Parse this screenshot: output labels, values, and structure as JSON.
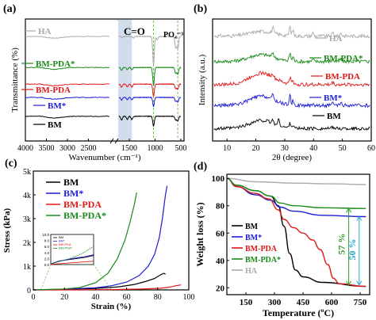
{
  "colors": {
    "HA": "#aaaaaa",
    "BM": "#000000",
    "BM*": "#1c1cd6",
    "BM-PDA": "#e01818",
    "BM-PDA*": "#1a8a1a",
    "annot_green": "#2a9a2a",
    "annot_cyan": "#22a8cc",
    "band": "#c9d6ea",
    "dash": "#6fc24a"
  },
  "chart_data": [
    {
      "panel_label": "(a)",
      "type": "line",
      "xlabel": "Wavenumber (cm⁻¹)",
      "ylabel": "Transmittance (%)",
      "xlim": [
        4000,
        500
      ],
      "axis_break_between": [
        2000,
        1700
      ],
      "x_ticks": [
        "4000",
        "3500",
        "3000",
        "2500",
        "1500",
        "1000",
        "500"
      ],
      "annotations": [
        "C=O",
        "PO₄⁻³"
      ],
      "highlight_band": [
        1750,
        1450
      ],
      "dashed_lines": [
        1030,
        560
      ],
      "legend": [
        "HA",
        "BM-PDA*",
        "BM-PDA",
        "BM*",
        "BM"
      ],
      "series": [
        {
          "name": "HA",
          "offset": 0.9,
          "dips": [
            [
              1640,
              0.02
            ],
            [
              1420,
              0.03
            ],
            [
              1030,
              0.5
            ],
            [
              960,
              0.06
            ],
            [
              600,
              0.2
            ],
            [
              560,
              0.22
            ]
          ]
        },
        {
          "name": "BM-PDA*",
          "offset": 0.62,
          "dips": [
            [
              1650,
              0.05
            ],
            [
              1540,
              0.04
            ],
            [
              1450,
              0.04
            ],
            [
              1030,
              0.32
            ],
            [
              600,
              0.1
            ],
            [
              560,
              0.12
            ]
          ]
        },
        {
          "name": "BM-PDA",
          "offset": 0.47,
          "dips": [
            [
              1650,
              0.06
            ],
            [
              1540,
              0.05
            ],
            [
              1450,
              0.05
            ],
            [
              1030,
              0.22
            ],
            [
              600,
              0.08
            ],
            [
              560,
              0.09
            ]
          ]
        },
        {
          "name": "BM*",
          "offset": 0.35,
          "dips": [
            [
              1650,
              0.05
            ],
            [
              1540,
              0.04
            ],
            [
              1450,
              0.04
            ],
            [
              1030,
              0.16
            ],
            [
              600,
              0.07
            ],
            [
              560,
              0.08
            ]
          ]
        },
        {
          "name": "BM",
          "offset": 0.18,
          "dips": [
            [
              1650,
              0.07
            ],
            [
              1540,
              0.06
            ],
            [
              1450,
              0.06
            ],
            [
              1030,
              0.18
            ],
            [
              600,
              0.07
            ],
            [
              560,
              0.08
            ]
          ]
        }
      ]
    },
    {
      "panel_label": "(b)",
      "type": "line",
      "xlabel": "2θ (degree)",
      "ylabel": "Intensity (a.u.)",
      "xlim": [
        5,
        60
      ],
      "x_ticks": [
        10,
        20,
        30,
        40,
        50,
        60
      ],
      "legend": [
        "HA",
        "BM-PDA*",
        "BM-PDA",
        "BM*",
        "BM"
      ],
      "series": [
        {
          "name": "HA",
          "offset": 0.88,
          "hump": 0.04,
          "peaks": [
            [
              25.9,
              0.05
            ],
            [
              31.8,
              0.08
            ],
            [
              32.9,
              0.05
            ],
            [
              39.8,
              0.03
            ],
            [
              46.7,
              0.03
            ],
            [
              49.5,
              0.03
            ]
          ]
        },
        {
          "name": "BM-PDA*",
          "offset": 0.66,
          "hump": 0.06,
          "peaks": [
            [
              25.9,
              0.04
            ],
            [
              31.8,
              0.07
            ],
            [
              32.9,
              0.04
            ],
            [
              39.8,
              0.02
            ],
            [
              46.7,
              0.02
            ],
            [
              49.5,
              0.02
            ]
          ]
        },
        {
          "name": "BM-PDA",
          "offset": 0.46,
          "hump": 0.1,
          "peaks": [
            [
              25.9,
              0.03
            ],
            [
              31.8,
              0.06
            ],
            [
              32.9,
              0.03
            ],
            [
              46.7,
              0.02
            ]
          ]
        },
        {
          "name": "BM*",
          "offset": 0.28,
          "hump": 0.08,
          "peaks": [
            [
              25.9,
              0.04
            ],
            [
              31.8,
              0.08
            ],
            [
              32.9,
              0.04
            ],
            [
              39.8,
              0.02
            ],
            [
              46.7,
              0.02
            ],
            [
              49.5,
              0.02
            ]
          ]
        },
        {
          "name": "BM",
          "offset": 0.08,
          "hump": 0.07,
          "peaks": [
            [
              25.9,
              0.03
            ],
            [
              28.0,
              0.06
            ],
            [
              31.8,
              0.05
            ],
            [
              32.9,
              0.03
            ],
            [
              46.7,
              0.02
            ]
          ]
        }
      ]
    },
    {
      "panel_label": "(c)",
      "type": "line",
      "xlabel": "Strain (%)",
      "ylabel": "Stress (kPa)",
      "xlim": [
        0,
        100
      ],
      "ylim": [
        0,
        5000
      ],
      "x_ticks": [
        0,
        20,
        40,
        60,
        80,
        100
      ],
      "y_ticks": [
        "0",
        "1k",
        "2k",
        "3k",
        "4k",
        "5k"
      ],
      "legend": [
        "BM",
        "BM*",
        "BM-PDA",
        "BM-PDA*"
      ],
      "series": [
        {
          "name": "BM",
          "points": [
            [
              0,
              0
            ],
            [
              20,
              20
            ],
            [
              40,
              60
            ],
            [
              55,
              130
            ],
            [
              65,
              230
            ],
            [
              72,
              350
            ],
            [
              78,
              480
            ],
            [
              82,
              640
            ],
            [
              84,
              700
            ],
            [
              85,
              660
            ]
          ]
        },
        {
          "name": "BM*",
          "points": [
            [
              0,
              0
            ],
            [
              20,
              30
            ],
            [
              40,
              90
            ],
            [
              50,
              170
            ],
            [
              60,
              330
            ],
            [
              68,
              600
            ],
            [
              74,
              1000
            ],
            [
              78,
              1500
            ],
            [
              81,
              2200
            ],
            [
              83,
              3000
            ],
            [
              85,
              4000
            ],
            [
              86,
              4380
            ]
          ]
        },
        {
          "name": "BM-PDA",
          "points": [
            [
              0,
              0
            ],
            [
              30,
              5
            ],
            [
              50,
              15
            ],
            [
              70,
              35
            ],
            [
              82,
              70
            ],
            [
              88,
              120
            ],
            [
              92,
              180
            ],
            [
              95,
              210
            ]
          ]
        },
        {
          "name": "BM-PDA*",
          "points": [
            [
              0,
              0
            ],
            [
              20,
              40
            ],
            [
              30,
              100
            ],
            [
              40,
              300
            ],
            [
              48,
              700
            ],
            [
              54,
              1300
            ],
            [
              59,
              2100
            ],
            [
              62,
              2800
            ],
            [
              65,
              3600
            ],
            [
              66.5,
              4100
            ]
          ]
        }
      ],
      "inset": {
        "xlim": [
          0,
          50
        ],
        "ylim": [
          0,
          10
        ],
        "y_ticks": [
          "0.0",
          "2.0",
          "4.0",
          "6.0",
          "8.0",
          "10.0"
        ],
        "legend": [
          "BM",
          "BM*",
          "BM-PDA",
          "BM-PDA*"
        ],
        "series": [
          {
            "name": "BM",
            "points": [
              [
                0,
                0.2
              ],
              [
                10,
                1.2
              ],
              [
                20,
                1.6
              ],
              [
                30,
                2.0
              ],
              [
                40,
                2.4
              ],
              [
                50,
                3.0
              ]
            ]
          },
          {
            "name": "BM*",
            "points": [
              [
                0,
                0.2
              ],
              [
                10,
                1.1
              ],
              [
                20,
                1.7
              ],
              [
                30,
                2.2
              ],
              [
                40,
                2.6
              ],
              [
                50,
                3.3
              ]
            ]
          },
          {
            "name": "BM-PDA",
            "points": [
              [
                0,
                0.1
              ],
              [
                10,
                0.3
              ],
              [
                20,
                0.5
              ],
              [
                30,
                0.7
              ],
              [
                40,
                0.9
              ],
              [
                50,
                1.1
              ]
            ]
          },
          {
            "name": "BM-PDA*",
            "points": [
              [
                0,
                0.3
              ],
              [
                10,
                1.0
              ],
              [
                20,
                1.8
              ],
              [
                30,
                2.8
              ],
              [
                40,
                4.2
              ],
              [
                50,
                6.0
              ]
            ]
          }
        ]
      }
    },
    {
      "panel_label": "(d)",
      "type": "line",
      "xlabel": "Temperature (ºC)",
      "ylabel": "Weight loss (%)",
      "xlim": [
        50,
        800
      ],
      "ylim": [
        15,
        103
      ],
      "x_ticks": [
        150,
        300,
        450,
        600,
        750
      ],
      "y_ticks": [
        20,
        40,
        60,
        80,
        100
      ],
      "legend": [
        "BM",
        "BM*",
        "BM-PDA",
        "BM-PDA*",
        "HA"
      ],
      "annotations": [
        "57 %",
        "50 %"
      ],
      "series": [
        {
          "name": "HA",
          "points": [
            [
              50,
              100
            ],
            [
              200,
              97.5
            ],
            [
              400,
              96.5
            ],
            [
              600,
              96
            ],
            [
              780,
              95.5
            ]
          ]
        },
        {
          "name": "BM",
          "points": [
            [
              50,
              100
            ],
            [
              100,
              95
            ],
            [
              200,
              91
            ],
            [
              280,
              87
            ],
            [
              320,
              80
            ],
            [
              350,
              65
            ],
            [
              380,
              45
            ],
            [
              410,
              33
            ],
            [
              450,
              28
            ],
            [
              550,
              24
            ],
            [
              780,
              21
            ]
          ]
        },
        {
          "name": "BM*",
          "points": [
            [
              50,
              100
            ],
            [
              100,
              94
            ],
            [
              200,
              88
            ],
            [
              280,
              84
            ],
            [
              330,
              79
            ],
            [
              400,
              76
            ],
            [
              550,
              73
            ],
            [
              780,
              72
            ]
          ]
        },
        {
          "name": "BM-PDA",
          "points": [
            [
              50,
              100
            ],
            [
              100,
              94
            ],
            [
              200,
              89
            ],
            [
              270,
              85
            ],
            [
              320,
              77
            ],
            [
              350,
              70
            ],
            [
              400,
              64
            ],
            [
              450,
              60
            ],
            [
              500,
              55
            ],
            [
              540,
              48
            ],
            [
              580,
              37
            ],
            [
              610,
              27
            ],
            [
              640,
              23
            ],
            [
              780,
              21
            ]
          ]
        },
        {
          "name": "BM-PDA*",
          "points": [
            [
              50,
              100
            ],
            [
              100,
              95
            ],
            [
              200,
              91
            ],
            [
              280,
              87
            ],
            [
              330,
              82
            ],
            [
              400,
              80
            ],
            [
              550,
              78.5
            ],
            [
              780,
              78
            ]
          ]
        }
      ]
    }
  ]
}
